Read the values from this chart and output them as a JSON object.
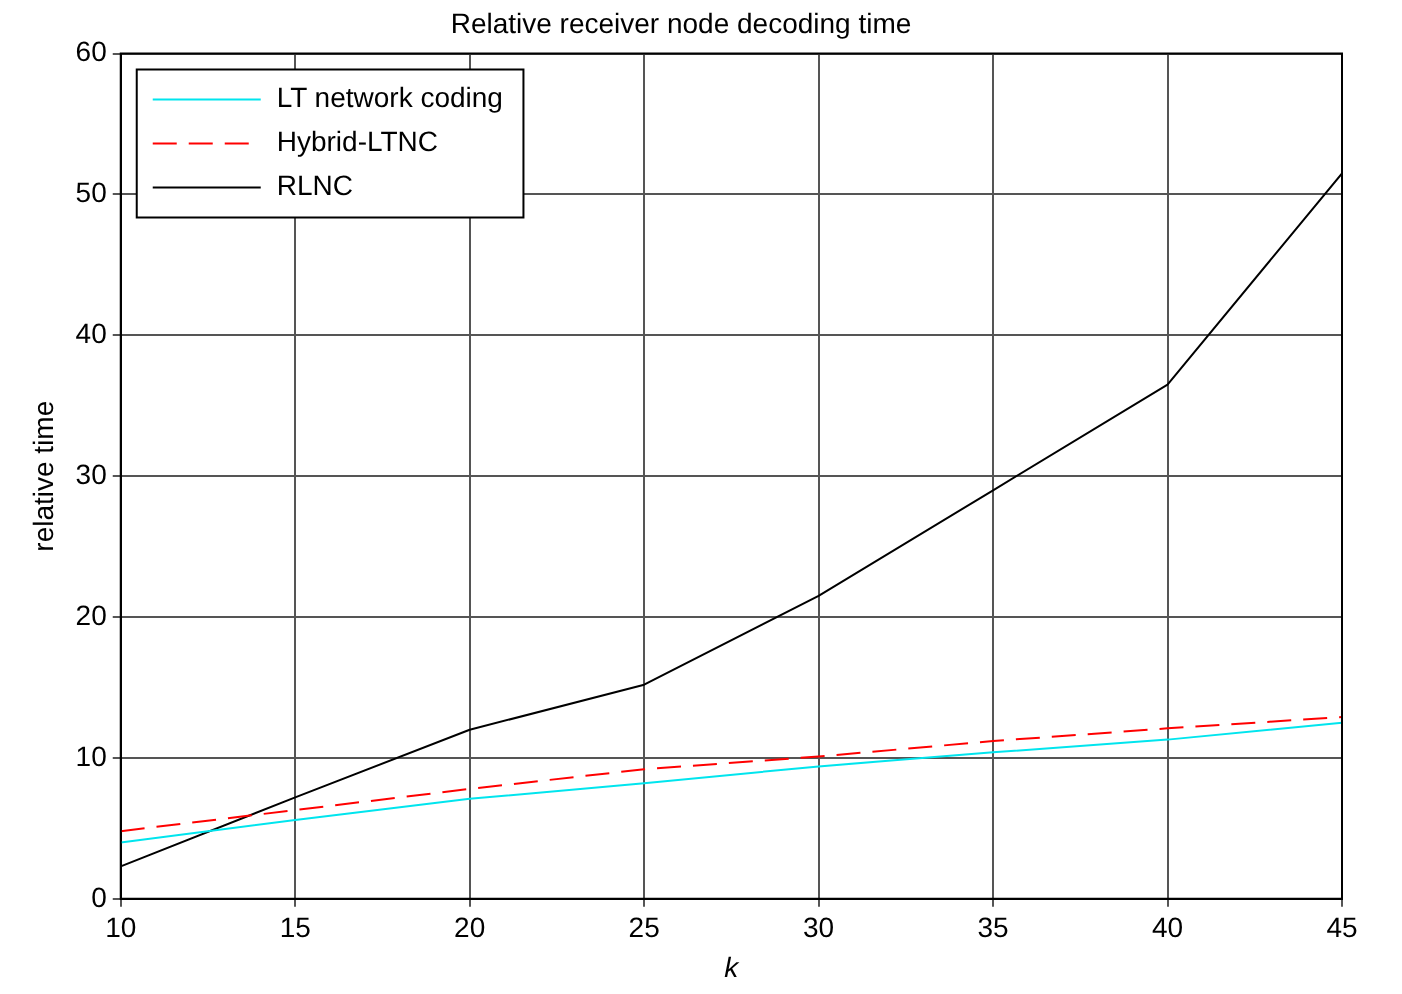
{
  "chart_data": {
    "type": "line",
    "title": "Relative receiver node decoding time",
    "xlabel": "k",
    "ylabel": "relative time",
    "x": [
      10,
      15,
      20,
      25,
      30,
      35,
      40,
      45
    ],
    "series": [
      {
        "name": "LT network coding",
        "color": "#00e5ee",
        "values": [
          4,
          5.6,
          7.1,
          8.2,
          9.4,
          10.4,
          11.3,
          12.5
        ]
      },
      {
        "name": "Hybrid-LTNC",
        "color": "#ff0000",
        "line_style": "dashed",
        "values": [
          4.8,
          6.3,
          7.8,
          9.2,
          10.1,
          11.2,
          12.1,
          12.9
        ]
      },
      {
        "name": "RLNC",
        "color": "#000000",
        "values": [
          2.3,
          7.2,
          12,
          15.2,
          21.5,
          29,
          36.5,
          51.5
        ]
      }
    ],
    "xlim": [
      10,
      45
    ],
    "xticks": [
      10,
      15,
      20,
      25,
      30,
      35,
      40,
      45
    ],
    "ylim": [
      0,
      60
    ],
    "yticks": [
      0,
      10,
      20,
      30,
      40,
      50,
      60
    ],
    "grid": true,
    "legend": "top left",
    "line_style": "solid",
    "marker": "none"
  }
}
